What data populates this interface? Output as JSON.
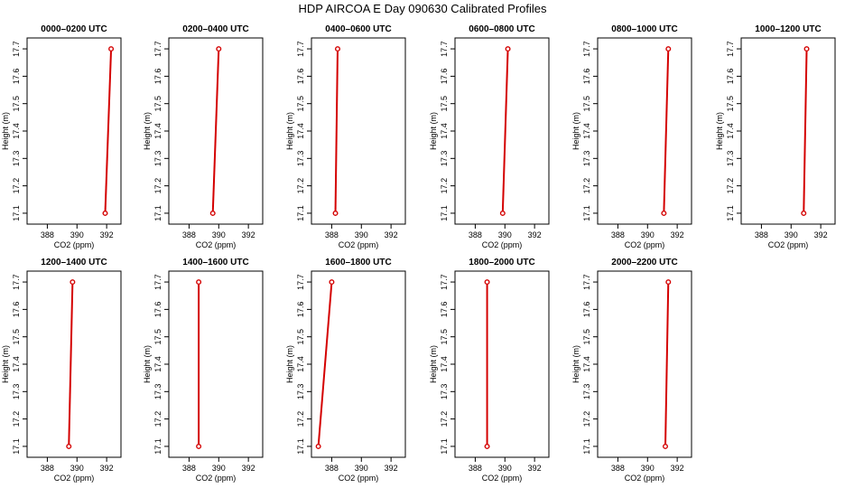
{
  "figure": {
    "title": "HDP AIRCOA E  Day 090630  Calibrated Profiles"
  },
  "style": {
    "series_color": "#d40000",
    "axis_color": "#000000",
    "background": "#ffffff"
  },
  "chart_data": [
    {
      "type": "line",
      "title": "0000–0200 UTC",
      "xlabel": "CO2 (ppm)",
      "ylabel": "Height (m)",
      "xlim": [
        387,
        392.6
      ],
      "ylim": [
        17.08,
        17.72
      ],
      "xticks": [
        388,
        390,
        392
      ],
      "yticks": [
        17.1,
        17.2,
        17.3,
        17.4,
        17.5,
        17.6,
        17.7
      ],
      "grid": false,
      "series": [
        {
          "x": [
            391.9,
            392.3
          ],
          "y": [
            17.1,
            17.7
          ]
        }
      ]
    },
    {
      "type": "line",
      "title": "0200–0400 UTC",
      "xlabel": "CO2 (ppm)",
      "ylabel": "Height (m)",
      "xlim": [
        387,
        392.6
      ],
      "ylim": [
        17.08,
        17.72
      ],
      "xticks": [
        388,
        390,
        392
      ],
      "yticks": [
        17.1,
        17.2,
        17.3,
        17.4,
        17.5,
        17.6,
        17.7
      ],
      "grid": false,
      "series": [
        {
          "x": [
            389.6,
            390.0
          ],
          "y": [
            17.1,
            17.7
          ]
        }
      ]
    },
    {
      "type": "line",
      "title": "0400–0600 UTC",
      "xlabel": "CO2 (ppm)",
      "ylabel": "Height (m)",
      "xlim": [
        387,
        392.6
      ],
      "ylim": [
        17.08,
        17.72
      ],
      "xticks": [
        388,
        390,
        392
      ],
      "yticks": [
        17.1,
        17.2,
        17.3,
        17.4,
        17.5,
        17.6,
        17.7
      ],
      "grid": false,
      "series": [
        {
          "x": [
            388.25,
            388.4
          ],
          "y": [
            17.1,
            17.7
          ]
        }
      ]
    },
    {
      "type": "line",
      "title": "0600–0800 UTC",
      "xlabel": "CO2 (ppm)",
      "ylabel": "Height (m)",
      "xlim": [
        387,
        392.6
      ],
      "ylim": [
        17.08,
        17.72
      ],
      "xticks": [
        388,
        390,
        392
      ],
      "yticks": [
        17.1,
        17.2,
        17.3,
        17.4,
        17.5,
        17.6,
        17.7
      ],
      "grid": false,
      "series": [
        {
          "x": [
            389.85,
            390.2
          ],
          "y": [
            17.1,
            17.7
          ]
        }
      ]
    },
    {
      "type": "line",
      "title": "0800–1000 UTC",
      "xlabel": "CO2 (ppm)",
      "ylabel": "Height (m)",
      "xlim": [
        387,
        392.6
      ],
      "ylim": [
        17.08,
        17.72
      ],
      "xticks": [
        388,
        390,
        392
      ],
      "yticks": [
        17.1,
        17.2,
        17.3,
        17.4,
        17.5,
        17.6,
        17.7
      ],
      "grid": false,
      "series": [
        {
          "x": [
            391.1,
            391.4
          ],
          "y": [
            17.1,
            17.7
          ]
        }
      ]
    },
    {
      "type": "line",
      "title": "1000–1200 UTC",
      "xlabel": "CO2 (ppm)",
      "ylabel": "Height (m)",
      "xlim": [
        387,
        392.6
      ],
      "ylim": [
        17.08,
        17.72
      ],
      "xticks": [
        388,
        390,
        392
      ],
      "yticks": [
        17.1,
        17.2,
        17.3,
        17.4,
        17.5,
        17.6,
        17.7
      ],
      "grid": false,
      "series": [
        {
          "x": [
            390.85,
            391.05
          ],
          "y": [
            17.1,
            17.7
          ]
        }
      ]
    },
    {
      "type": "line",
      "title": "1200–1400 UTC",
      "xlabel": "CO2 (ppm)",
      "ylabel": "Height (m)",
      "xlim": [
        387,
        392.6
      ],
      "ylim": [
        17.08,
        17.72
      ],
      "xticks": [
        388,
        390,
        392
      ],
      "yticks": [
        17.1,
        17.2,
        17.3,
        17.4,
        17.5,
        17.6,
        17.7
      ],
      "grid": false,
      "series": [
        {
          "x": [
            389.45,
            389.7
          ],
          "y": [
            17.1,
            17.7
          ]
        }
      ]
    },
    {
      "type": "line",
      "title": "1400–1600 UTC",
      "xlabel": "CO2 (ppm)",
      "ylabel": "Height (m)",
      "xlim": [
        387,
        392.6
      ],
      "ylim": [
        17.08,
        17.72
      ],
      "xticks": [
        388,
        390,
        392
      ],
      "yticks": [
        17.1,
        17.2,
        17.3,
        17.4,
        17.5,
        17.6,
        17.7
      ],
      "grid": false,
      "series": [
        {
          "x": [
            388.65,
            388.65
          ],
          "y": [
            17.1,
            17.7
          ]
        }
      ]
    },
    {
      "type": "line",
      "title": "1600–1800 UTC",
      "xlabel": "CO2 (ppm)",
      "ylabel": "Height (m)",
      "xlim": [
        387,
        392.6
      ],
      "ylim": [
        17.08,
        17.72
      ],
      "xticks": [
        388,
        390,
        392
      ],
      "yticks": [
        17.1,
        17.2,
        17.3,
        17.4,
        17.5,
        17.6,
        17.7
      ],
      "grid": false,
      "series": [
        {
          "x": [
            387.1,
            388.0
          ],
          "y": [
            17.1,
            17.7
          ]
        }
      ]
    },
    {
      "type": "line",
      "title": "1800–2000 UTC",
      "xlabel": "CO2 (ppm)",
      "ylabel": "Height (m)",
      "xlim": [
        387,
        392.6
      ],
      "ylim": [
        17.08,
        17.72
      ],
      "xticks": [
        388,
        390,
        392
      ],
      "yticks": [
        17.1,
        17.2,
        17.3,
        17.4,
        17.5,
        17.6,
        17.7
      ],
      "grid": false,
      "series": [
        {
          "x": [
            388.8,
            388.8
          ],
          "y": [
            17.1,
            17.7
          ]
        }
      ]
    },
    {
      "type": "line",
      "title": "2000–2200 UTC",
      "xlabel": "CO2 (ppm)",
      "ylabel": "Height (m)",
      "xlim": [
        387,
        392.6
      ],
      "ylim": [
        17.08,
        17.72
      ],
      "xticks": [
        388,
        390,
        392
      ],
      "yticks": [
        17.1,
        17.2,
        17.3,
        17.4,
        17.5,
        17.6,
        17.7
      ],
      "grid": false,
      "series": [
        {
          "x": [
            391.2,
            391.4
          ],
          "y": [
            17.1,
            17.7
          ]
        }
      ]
    }
  ]
}
